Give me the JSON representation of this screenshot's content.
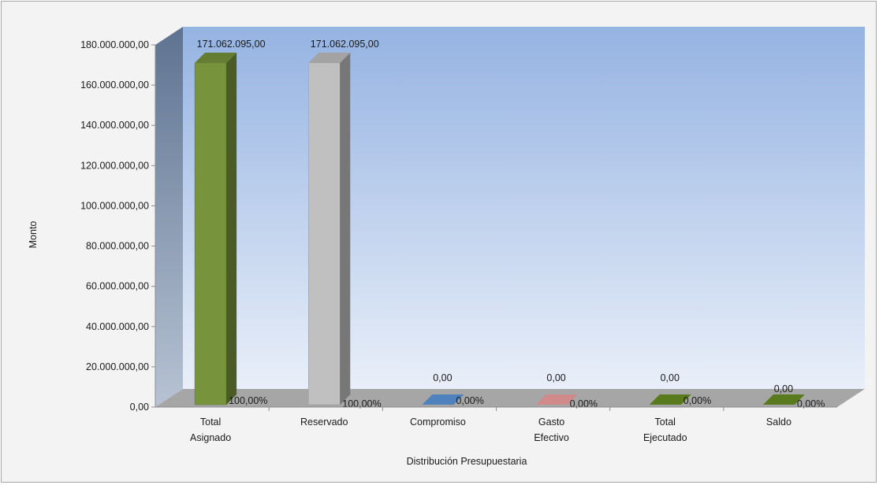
{
  "chart_data": {
    "type": "bar",
    "title": "",
    "xlabel": "Distribución Presupuestaria",
    "ylabel": "Monto",
    "ylim": [
      0,
      180000000
    ],
    "yticks": [
      "0,00",
      "20.000.000,00",
      "40.000.000,00",
      "60.000.000,00",
      "80.000.000,00",
      "100.000.000,00",
      "120.000.000,00",
      "140.000.000,00",
      "160.000.000,00",
      "180.000.000,00"
    ],
    "categories": [
      [
        "Total",
        "Asignado"
      ],
      [
        "Reservado"
      ],
      [
        "Compromiso"
      ],
      [
        "Gasto",
        "Efectivo"
      ],
      [
        "Total",
        "Ejecutado"
      ],
      [
        "Saldo"
      ]
    ],
    "values": [
      171062095,
      171062095,
      0,
      0,
      0,
      0
    ],
    "value_labels": [
      "171.062.095,00",
      "171.062.095,00",
      "0,00",
      "0,00",
      "0,00",
      "0,00"
    ],
    "percent_labels": [
      "100,00%",
      "100,00%",
      "0,00%",
      "0,00%",
      "0,00%",
      "0,00%"
    ],
    "colors": [
      "#77933c",
      "#c0c0c0",
      "#4f81bd",
      "#d08a8a",
      "#5a7a1e",
      "#5a7a1e"
    ],
    "style": "3d-column",
    "grid": false,
    "legend": "none"
  }
}
